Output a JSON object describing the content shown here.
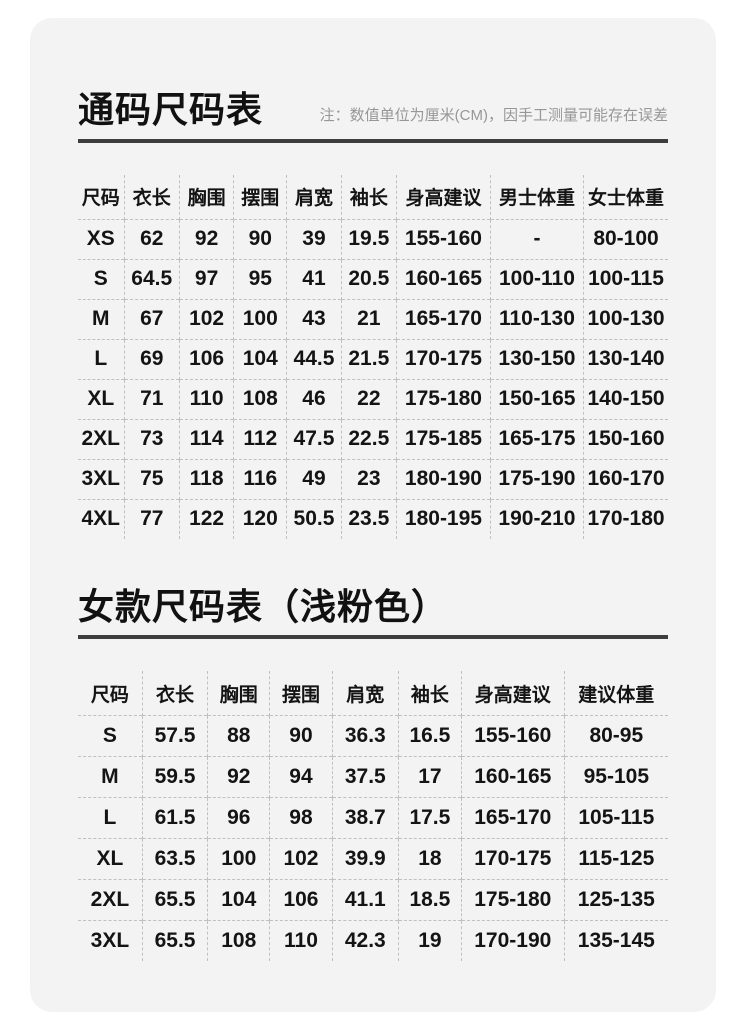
{
  "page": {
    "background_color": "#ffffff",
    "card_color": "#f3f3f3",
    "divider_color": "#3d3d3d",
    "text_color": "#141414",
    "note_color": "#979797",
    "dashed_line_color": "#c0c0c0"
  },
  "sections": [
    {
      "title": "通码尺码表",
      "note": "注：数值单位为厘米(CM)，因手工测量可能存在误差",
      "table": {
        "headers": [
          "尺码",
          "衣长",
          "胸围",
          "摆围",
          "肩宽",
          "袖长",
          "身高建议",
          "男士体重",
          "女士体重"
        ],
        "rows": [
          [
            "XS",
            "62",
            "92",
            "90",
            "39",
            "19.5",
            "155-160",
            "-",
            "80-100"
          ],
          [
            "S",
            "64.5",
            "97",
            "95",
            "41",
            "20.5",
            "160-165",
            "100-110",
            "100-115"
          ],
          [
            "M",
            "67",
            "102",
            "100",
            "43",
            "21",
            "165-170",
            "110-130",
            "100-130"
          ],
          [
            "L",
            "69",
            "106",
            "104",
            "44.5",
            "21.5",
            "170-175",
            "130-150",
            "130-140"
          ],
          [
            "XL",
            "71",
            "110",
            "108",
            "46",
            "22",
            "175-180",
            "150-165",
            "140-150"
          ],
          [
            "2XL",
            "73",
            "114",
            "112",
            "47.5",
            "22.5",
            "175-185",
            "165-175",
            "150-160"
          ],
          [
            "3XL",
            "75",
            "118",
            "116",
            "49",
            "23",
            "180-190",
            "175-190",
            "160-170"
          ],
          [
            "4XL",
            "77",
            "122",
            "120",
            "50.5",
            "23.5",
            "180-195",
            "190-210",
            "170-180"
          ]
        ]
      }
    },
    {
      "title": "女款尺码表（浅粉色）",
      "note": "",
      "table": {
        "headers": [
          "尺码",
          "衣长",
          "胸围",
          "摆围",
          "肩宽",
          "袖长",
          "身高建议",
          "建议体重"
        ],
        "rows": [
          [
            "S",
            "57.5",
            "88",
            "90",
            "36.3",
            "16.5",
            "155-160",
            "80-95"
          ],
          [
            "M",
            "59.5",
            "92",
            "94",
            "37.5",
            "17",
            "160-165",
            "95-105"
          ],
          [
            "L",
            "61.5",
            "96",
            "98",
            "38.7",
            "17.5",
            "165-170",
            "105-115"
          ],
          [
            "XL",
            "63.5",
            "100",
            "102",
            "39.9",
            "18",
            "170-175",
            "115-125"
          ],
          [
            "2XL",
            "65.5",
            "104",
            "106",
            "41.1",
            "18.5",
            "175-180",
            "125-135"
          ],
          [
            "3XL",
            "65.5",
            "108",
            "110",
            "42.3",
            "19",
            "170-190",
            "135-145"
          ]
        ]
      }
    }
  ]
}
